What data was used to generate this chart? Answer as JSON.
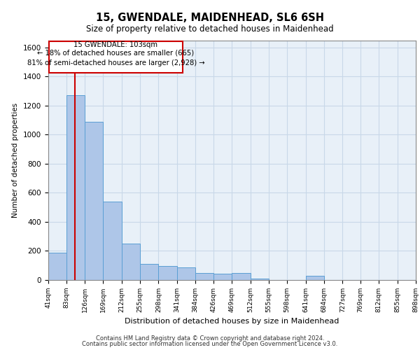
{
  "title1": "15, GWENDALE, MAIDENHEAD, SL6 6SH",
  "title2": "Size of property relative to detached houses in Maidenhead",
  "xlabel": "Distribution of detached houses by size in Maidenhead",
  "ylabel": "Number of detached properties",
  "footer1": "Contains HM Land Registry data © Crown copyright and database right 2024.",
  "footer2": "Contains public sector information licensed under the Open Government Licence v3.0.",
  "annotation_line1": "15 GWENDALE: 103sqm",
  "annotation_line2": "← 18% of detached houses are smaller (665)",
  "annotation_line3": "81% of semi-detached houses are larger (2,928) →",
  "property_size": 103,
  "bin_edges": [
    41,
    83,
    126,
    169,
    212,
    255,
    298,
    341,
    384,
    426,
    469,
    512,
    555,
    598,
    641,
    684,
    727,
    769,
    812,
    855,
    898
  ],
  "bar_heights": [
    190,
    1270,
    1090,
    540,
    250,
    110,
    95,
    85,
    50,
    45,
    50,
    10,
    0,
    0,
    30,
    0,
    0,
    0,
    0,
    0
  ],
  "bar_color": "#aec6e8",
  "bar_edge_color": "#5a9fd4",
  "red_line_color": "#cc0000",
  "grid_color": "#c8d8e8",
  "bg_color": "#e8f0f8",
  "annotation_box_color": "#cc0000",
  "ylim": [
    0,
    1650
  ],
  "yticks": [
    0,
    200,
    400,
    600,
    800,
    1000,
    1200,
    1400,
    1600
  ]
}
